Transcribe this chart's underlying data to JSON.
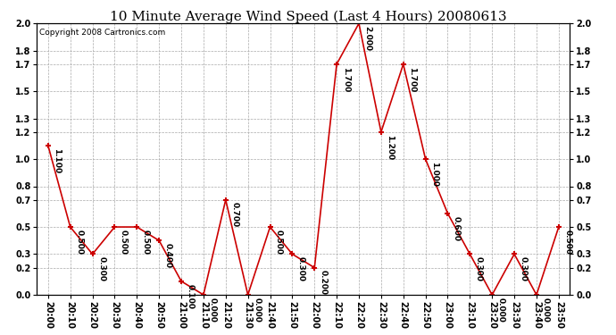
{
  "title": "10 Minute Average Wind Speed (Last 4 Hours) 20080613",
  "copyright": "Copyright 2008 Cartronics.com",
  "x_labels": [
    "20:00",
    "20:10",
    "20:20",
    "20:30",
    "20:40",
    "20:50",
    "21:00",
    "21:10",
    "21:20",
    "21:30",
    "21:40",
    "21:50",
    "22:00",
    "22:10",
    "22:20",
    "22:30",
    "22:40",
    "22:50",
    "23:00",
    "23:10",
    "23:20",
    "23:30",
    "23:40",
    "23:50"
  ],
  "y_values": [
    1.1,
    0.5,
    0.3,
    0.5,
    0.5,
    0.4,
    0.1,
    0.0,
    0.7,
    0.0,
    0.5,
    0.3,
    0.2,
    1.7,
    2.0,
    1.2,
    1.7,
    1.0,
    0.6,
    0.3,
    0.0,
    0.3,
    0.0,
    0.5
  ],
  "ylim": [
    0.0,
    2.0
  ],
  "yticks": [
    0.0,
    0.2,
    0.3,
    0.5,
    0.7,
    0.8,
    1.0,
    1.2,
    1.3,
    1.5,
    1.7,
    1.8,
    2.0
  ],
  "line_color": "#cc0000",
  "marker_color": "#cc0000",
  "bg_color": "#ffffff",
  "grid_color": "#aaaaaa",
  "title_fontsize": 11,
  "label_fontsize": 7,
  "annotation_fontsize": 6.5,
  "copyright_fontsize": 6.5
}
